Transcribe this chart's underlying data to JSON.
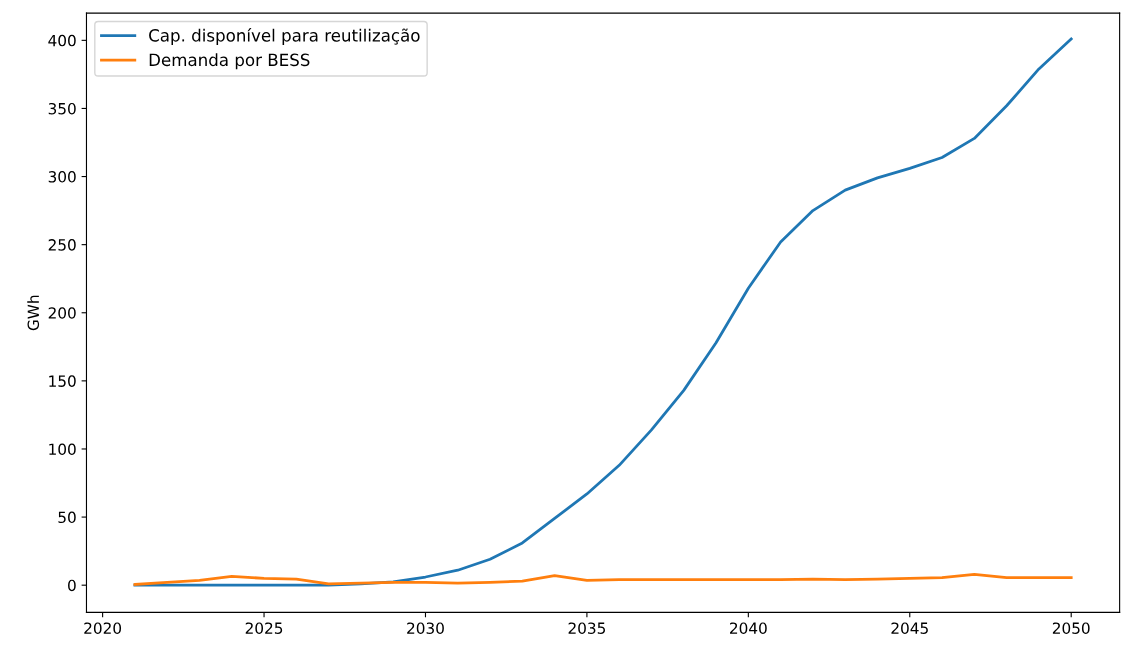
{
  "chart_data": {
    "type": "line",
    "ylabel": "GWh",
    "x": [
      2021,
      2022,
      2023,
      2024,
      2025,
      2026,
      2027,
      2028,
      2029,
      2030,
      2031,
      2032,
      2033,
      2034,
      2035,
      2036,
      2037,
      2038,
      2039,
      2040,
      2041,
      2042,
      2043,
      2044,
      2045,
      2046,
      2047,
      2048,
      2049,
      2050
    ],
    "series": [
      {
        "name": "Cap. disponível para reutilização",
        "color": "#1f77b4",
        "values": [
          0,
          0,
          0,
          0,
          0,
          0,
          0,
          1,
          2.5,
          6,
          11,
          19,
          31,
          49,
          67,
          88,
          114,
          143,
          178,
          218,
          252,
          275,
          290,
          299,
          306,
          314,
          328,
          352,
          379,
          401
        ]
      },
      {
        "name": "Demanda por BESS",
        "color": "#ff7f0e",
        "values": [
          0.5,
          2,
          3.5,
          6.5,
          5,
          4.5,
          1,
          1.5,
          2,
          2,
          1.5,
          2,
          3,
          7,
          3.5,
          4,
          4,
          4,
          4,
          4,
          4,
          4.5,
          4,
          4.5,
          5,
          5.5,
          8,
          5.5,
          5.5,
          5.5
        ]
      }
    ],
    "xlim": [
      2019.5,
      2051.5
    ],
    "xticks": [
      2020,
      2025,
      2030,
      2035,
      2040,
      2045,
      2050
    ],
    "ylim": [
      -20,
      420
    ],
    "yticks": [
      0,
      50,
      100,
      150,
      200,
      250,
      300,
      350,
      400
    ],
    "grid": false,
    "legend": "top left"
  }
}
